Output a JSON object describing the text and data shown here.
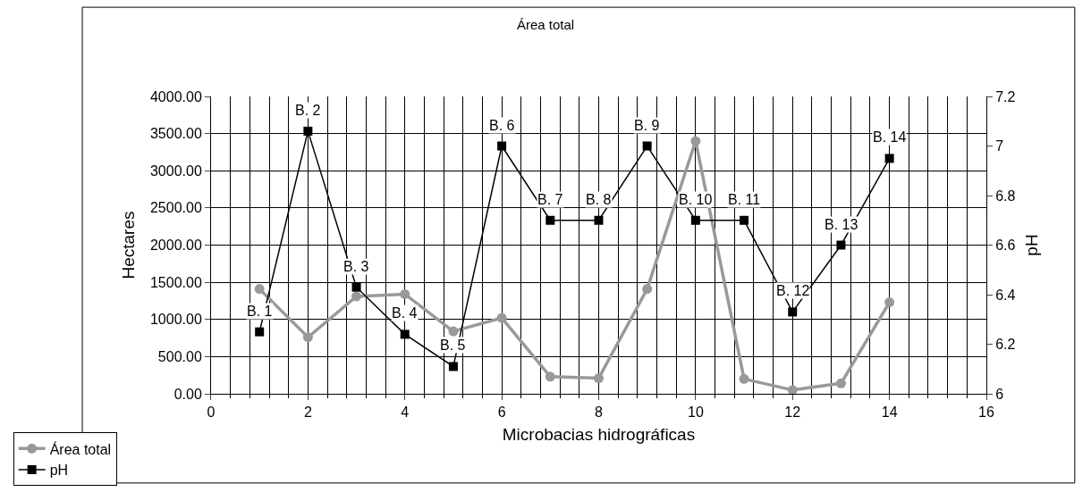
{
  "chart_data": {
    "type": "line",
    "title": "Área total",
    "xlabel": "Microbacias hidrográficas",
    "ylabel": "Hectares",
    "y2label": "pH",
    "x": [
      1,
      2,
      3,
      4,
      5,
      6,
      7,
      8,
      9,
      10,
      11,
      12,
      13,
      14
    ],
    "series": [
      {
        "name": "Área total",
        "color": "#999999",
        "marker": "circle",
        "values": [
          1410,
          760,
          1310,
          1340,
          840,
          1020,
          230,
          210,
          1410,
          3400,
          200,
          50,
          140,
          1230
        ]
      },
      {
        "name": "pH",
        "color": "#000000",
        "marker": "square",
        "axis": "y2",
        "values": [
          6.25,
          7.06,
          6.43,
          6.24,
          6.11,
          7.0,
          6.7,
          6.7,
          7.0,
          6.7,
          6.7,
          6.33,
          6.6,
          6.95
        ]
      }
    ],
    "xlim": [
      0,
      16
    ],
    "xticks": [
      0,
      2,
      4,
      6,
      8,
      10,
      12,
      14,
      16
    ],
    "ylim": [
      0,
      4000
    ],
    "yticks": [
      {
        "value": 0,
        "label": "0.00"
      },
      {
        "value": 500,
        "label": "500.00"
      },
      {
        "value": 1000,
        "label": "1000.00"
      },
      {
        "value": 1500,
        "label": "1500.00"
      },
      {
        "value": 2000,
        "label": "2000.00"
      },
      {
        "value": 2500,
        "label": "2500.00"
      },
      {
        "value": 3000,
        "label": "3000.00"
      },
      {
        "value": 3500,
        "label": "3500.00"
      },
      {
        "value": 4000,
        "label": "4000.00"
      }
    ],
    "y2lim": [
      6,
      7.2
    ],
    "y2ticks": [
      6,
      6.2,
      6.4,
      6.6,
      6.8,
      7,
      7.2
    ],
    "grid": true,
    "legend": "bottom left",
    "annotations": [
      "B. 1",
      "B. 2",
      "B. 3",
      "B. 4",
      "B. 5",
      "B. 6",
      "B. 7",
      "B. 8",
      "B. 9",
      "B. 10",
      "B. 11",
      "B. 12",
      "B. 13",
      "B. 14"
    ]
  }
}
